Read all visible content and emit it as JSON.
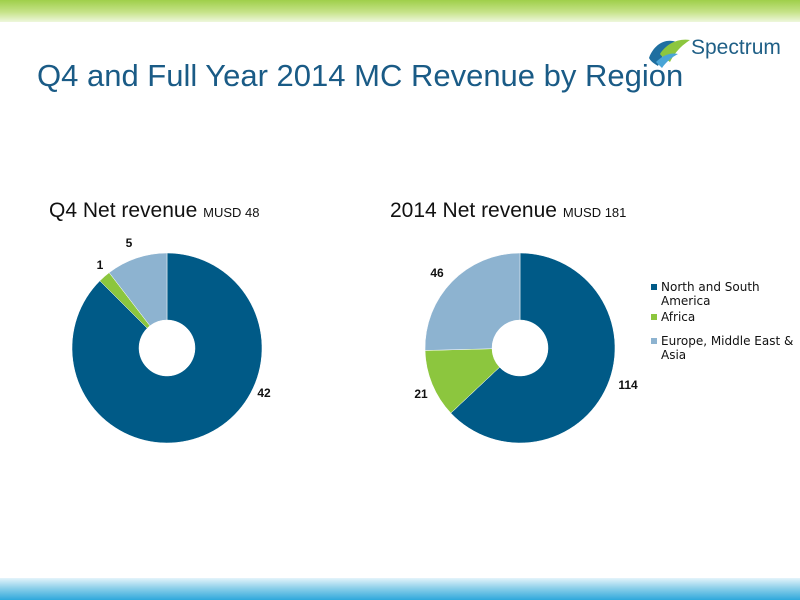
{
  "slide": {
    "title": "Q4 and Full Year 2014 MC Revenue by Region",
    "logo_text": "Spectrum"
  },
  "colors": {
    "north_south_america": "#005a87",
    "africa": "#8cc63e",
    "emea_asia": "#8db3d0",
    "title": "#1a5b86"
  },
  "chart_data": [
    {
      "type": "pie",
      "variant": "doughnut",
      "title": "Q4 Net revenue",
      "unit": "MUSD 48",
      "categories": [
        "North and South America",
        "Africa",
        "Europe, Middle East & Asia"
      ],
      "values": [
        42,
        1,
        5
      ]
    },
    {
      "type": "pie",
      "variant": "doughnut",
      "title": "2014 Net revenue",
      "unit": "MUSD 181",
      "categories": [
        "North and South America",
        "Africa",
        "Europe, Middle East & Asia"
      ],
      "values": [
        114,
        21,
        46
      ],
      "legend_position": "right"
    }
  ],
  "legend": {
    "items": [
      {
        "label": "North and South America",
        "color": "#005a87"
      },
      {
        "label": "Africa",
        "color": "#8cc63e"
      },
      {
        "label": "Europe, Middle East & Asia",
        "color": "#8db3d0"
      }
    ]
  }
}
